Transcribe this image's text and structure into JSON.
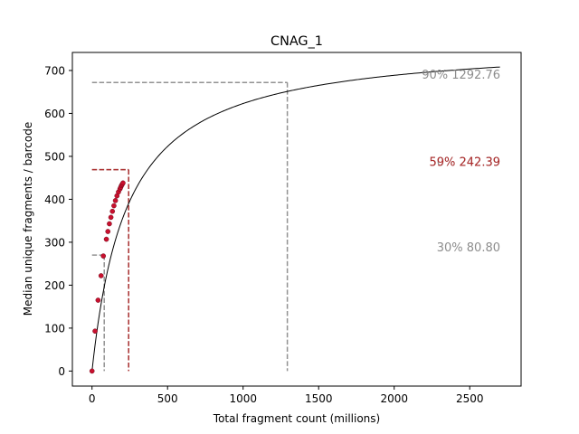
{
  "chart_data": {
    "type": "line",
    "title": "CNAG_1",
    "xlabel": "Total fragment count (millions)",
    "ylabel": "Median unique fragments / barcode",
    "xlim": [
      -130,
      2840
    ],
    "ylim": [
      -35,
      742
    ],
    "xticks": [
      0,
      500,
      1000,
      1500,
      2000,
      2500
    ],
    "yticks": [
      0,
      100,
      200,
      300,
      400,
      500,
      600,
      700
    ],
    "grid": false,
    "curve": {
      "name": "fit",
      "color": "#000000",
      "x": [
        0,
        5,
        10,
        15,
        20,
        30,
        40,
        50,
        60,
        70,
        80,
        100,
        120,
        140,
        160,
        180,
        200,
        220,
        242,
        260,
        280,
        300,
        330,
        360,
        400,
        450,
        500,
        550,
        600,
        700,
        800,
        900,
        1000,
        1100,
        1200,
        1292.76,
        1400,
        1500,
        1700,
        1900,
        2100,
        2300,
        2500,
        2700
      ],
      "y": [
        0,
        13,
        26,
        39,
        51,
        74,
        96,
        117,
        137,
        156,
        174,
        207,
        237,
        264,
        289,
        311,
        331,
        350,
        469,
        382,
        397,
        411,
        429,
        446,
        465,
        487,
        505,
        521,
        535,
        557,
        575,
        590,
        602,
        612,
        621,
        673,
        636,
        643,
        655,
        666,
        676,
        687,
        698,
        709
      ]
    },
    "points": {
      "color": "#c8102e",
      "x": [
        0,
        20,
        40,
        60,
        75,
        95,
        105,
        115,
        125,
        135,
        145,
        155,
        165,
        175,
        185,
        190,
        195,
        200,
        205
      ],
      "y": [
        0,
        93,
        165,
        222,
        268,
        307,
        325,
        343,
        358,
        372,
        385,
        397,
        408,
        417,
        424,
        428,
        432,
        435,
        438
      ]
    },
    "saturation_lines": [
      {
        "label": "30% 80.80",
        "x": 80.8,
        "y": 270,
        "color": "#808080"
      },
      {
        "label": "50% 242.39",
        "x": 242.39,
        "y": 469,
        "color": "#808080"
      },
      {
        "label": "59% 242.39",
        "x": 242.39,
        "y": 469,
        "color": "#b22222"
      },
      {
        "label": "90% 1292.76",
        "x": 1292.76,
        "y": 672,
        "color": "#808080"
      }
    ]
  }
}
